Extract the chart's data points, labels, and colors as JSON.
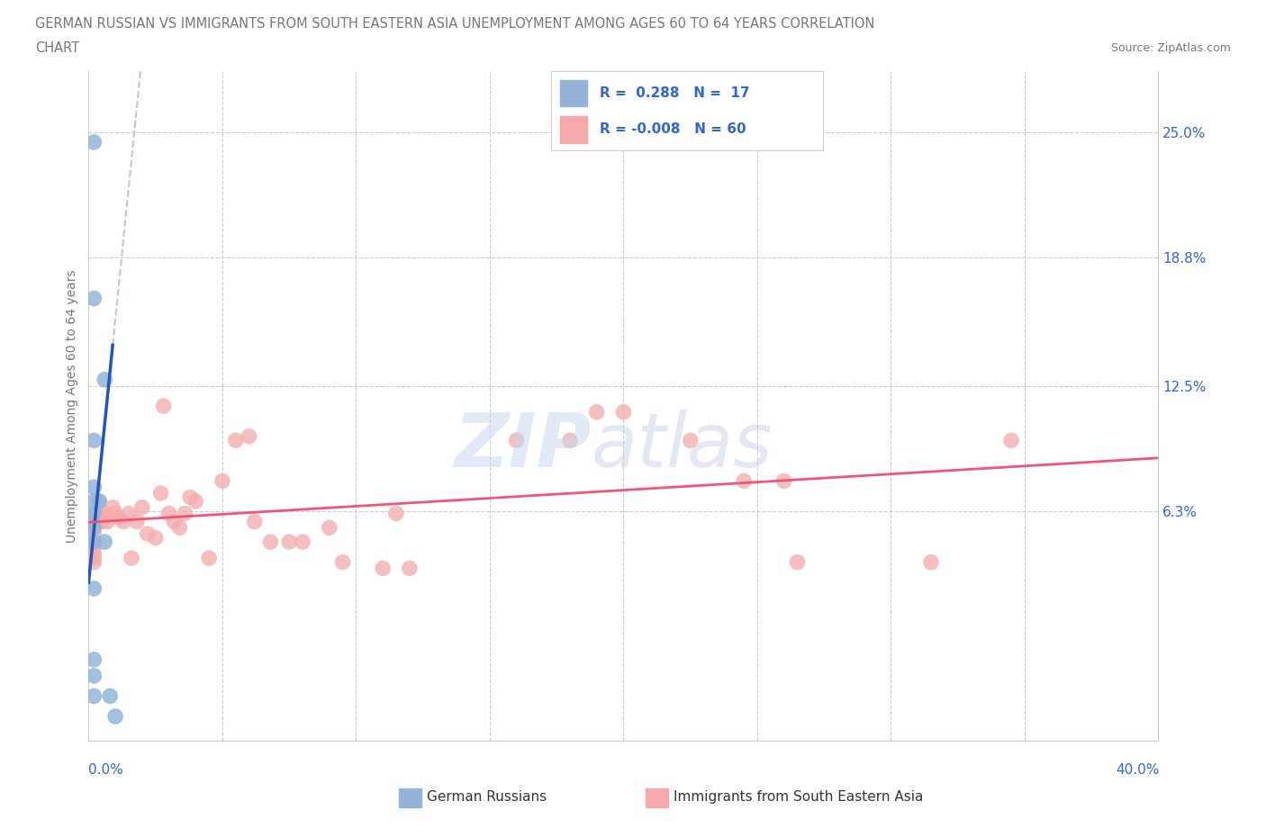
{
  "title_line1": "GERMAN RUSSIAN VS IMMIGRANTS FROM SOUTH EASTERN ASIA UNEMPLOYMENT AMONG AGES 60 TO 64 YEARS CORRELATION",
  "title_line2": "CHART",
  "source_text": "Source: ZipAtlas.com",
  "ylabel": "Unemployment Among Ages 60 to 64 years",
  "ytick_labels": [
    "25.0%",
    "18.8%",
    "12.5%",
    "6.3%"
  ],
  "ytick_values": [
    0.25,
    0.188,
    0.125,
    0.063
  ],
  "xlim": [
    0.0,
    0.4
  ],
  "ylim": [
    -0.05,
    0.28
  ],
  "blue_color": "#92B4D8",
  "pink_color": "#F4AAAA",
  "blue_line_color": "#2255BB",
  "pink_line_color": "#EE5577",
  "dash_line_color": "#AABBCC",
  "blue_scatter": [
    [
      0.002,
      0.245
    ],
    [
      0.002,
      0.168
    ],
    [
      0.002,
      0.098
    ],
    [
      0.002,
      0.075
    ],
    [
      0.002,
      0.068
    ],
    [
      0.002,
      0.062
    ],
    [
      0.002,
      0.055
    ],
    [
      0.002,
      0.048
    ],
    [
      0.002,
      0.025
    ],
    [
      0.002,
      -0.01
    ],
    [
      0.002,
      -0.018
    ],
    [
      0.002,
      -0.028
    ],
    [
      0.004,
      0.068
    ],
    [
      0.006,
      0.128
    ],
    [
      0.006,
      0.048
    ],
    [
      0.008,
      -0.028
    ],
    [
      0.01,
      -0.038
    ]
  ],
  "pink_scatter": [
    [
      0.002,
      0.06
    ],
    [
      0.002,
      0.058
    ],
    [
      0.002,
      0.055
    ],
    [
      0.002,
      0.052
    ],
    [
      0.002,
      0.048
    ],
    [
      0.002,
      0.045
    ],
    [
      0.002,
      0.042
    ],
    [
      0.002,
      0.04
    ],
    [
      0.002,
      0.038
    ],
    [
      0.003,
      0.062
    ],
    [
      0.003,
      0.06
    ],
    [
      0.003,
      0.058
    ],
    [
      0.004,
      0.068
    ],
    [
      0.004,
      0.062
    ],
    [
      0.004,
      0.058
    ],
    [
      0.005,
      0.06
    ],
    [
      0.005,
      0.058
    ],
    [
      0.006,
      0.062
    ],
    [
      0.007,
      0.058
    ],
    [
      0.009,
      0.065
    ],
    [
      0.01,
      0.062
    ],
    [
      0.011,
      0.06
    ],
    [
      0.013,
      0.058
    ],
    [
      0.015,
      0.062
    ],
    [
      0.016,
      0.04
    ],
    [
      0.018,
      0.058
    ],
    [
      0.02,
      0.065
    ],
    [
      0.022,
      0.052
    ],
    [
      0.025,
      0.05
    ],
    [
      0.027,
      0.072
    ],
    [
      0.028,
      0.115
    ],
    [
      0.03,
      0.062
    ],
    [
      0.032,
      0.058
    ],
    [
      0.034,
      0.055
    ],
    [
      0.036,
      0.062
    ],
    [
      0.038,
      0.07
    ],
    [
      0.04,
      0.068
    ],
    [
      0.045,
      0.04
    ],
    [
      0.05,
      0.078
    ],
    [
      0.055,
      0.098
    ],
    [
      0.06,
      0.1
    ],
    [
      0.062,
      0.058
    ],
    [
      0.068,
      0.048
    ],
    [
      0.075,
      0.048
    ],
    [
      0.08,
      0.048
    ],
    [
      0.09,
      0.055
    ],
    [
      0.095,
      0.038
    ],
    [
      0.11,
      0.035
    ],
    [
      0.115,
      0.062
    ],
    [
      0.12,
      0.035
    ],
    [
      0.16,
      0.098
    ],
    [
      0.18,
      0.098
    ],
    [
      0.19,
      0.112
    ],
    [
      0.2,
      0.112
    ],
    [
      0.225,
      0.098
    ],
    [
      0.245,
      0.078
    ],
    [
      0.26,
      0.078
    ],
    [
      0.265,
      0.038
    ],
    [
      0.315,
      0.038
    ],
    [
      0.345,
      0.098
    ]
  ],
  "background_color": "#FFFFFF",
  "grid_color": "#CCCCCC",
  "text_color": "#777777",
  "axis_label_color": "#3366CC"
}
